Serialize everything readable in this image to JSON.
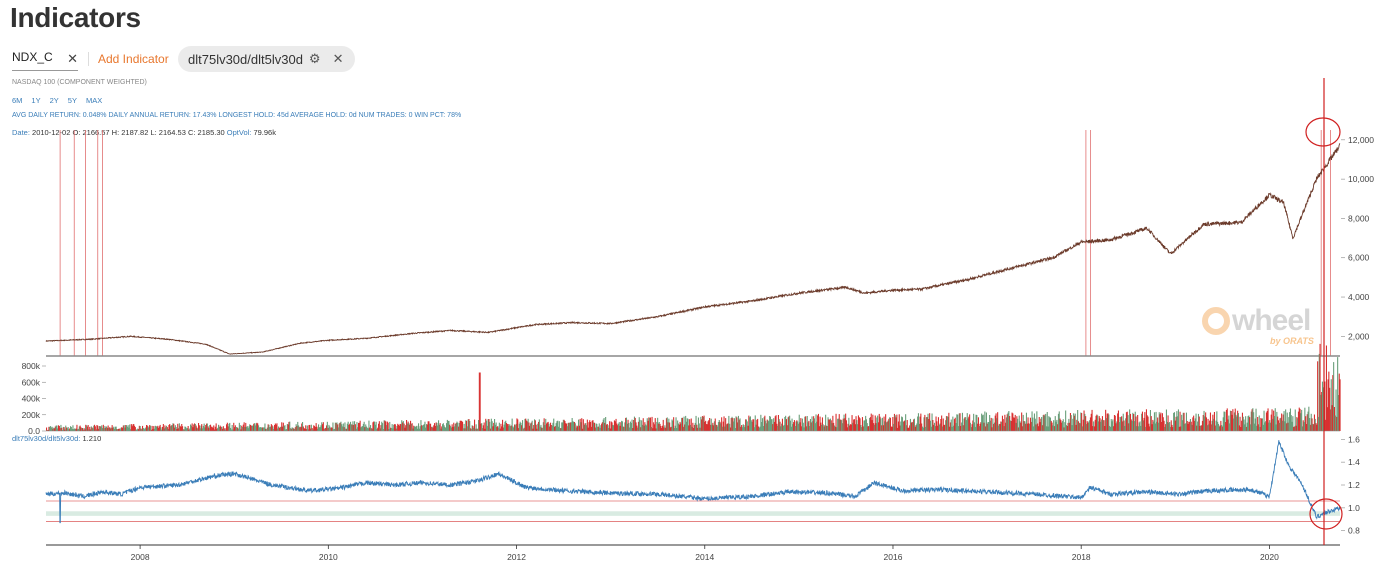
{
  "page": {
    "title": "Indicators"
  },
  "toolbar": {
    "ticker_value": "NDX_C",
    "add_indicator_label": "Add Indicator",
    "chip_label": "dlt75lv30d/dlt5lv30d"
  },
  "info": {
    "subtitle": "NASDAQ 100 (COMPONENT WEIGHTED)",
    "ranges": [
      "6M",
      "1Y",
      "2Y",
      "5Y",
      "MAX"
    ],
    "stats": "AVG DAILY RETURN: 0.048%   DAILY ANNUAL RETURN: 17.43%   LONGEST HOLD: 45d   AVERAGE HOLD: 0d   NUM TRADES: 0   WIN PCT: 78%",
    "ohlc_label": "Date:",
    "ohlc_text": " 2010-12-02  O: 2166.57  H: 2187.82  L: 2164.53  C: 2185.30  ",
    "optvol_label": "OptVol:",
    "optvol_value": " 79.96k"
  },
  "watermark": {
    "text": "wheel",
    "by": "by ORATS"
  },
  "indicator": {
    "name": "dlt75lv30d/dlt5lv30d:",
    "value": " 1.210"
  },
  "colors": {
    "accent": "#e8772e",
    "link": "#3a7db8",
    "price": "#6b3a2a",
    "line": "#3a7db8",
    "signal": "#e07070",
    "vol_up": "#6a9e7a",
    "vol_down": "#d83030",
    "band": "#d9ebe2"
  },
  "chart_data": [
    {
      "type": "line",
      "name": "price",
      "x_ticks": [
        "2008",
        "2010",
        "2012",
        "2014",
        "2016",
        "2018",
        "2020"
      ],
      "y_ticks": [
        "2,000",
        "4,000",
        "6,000",
        "8,000",
        "10,000",
        "12,000"
      ],
      "ylim": [
        1000,
        12500
      ],
      "x": [
        2007.0,
        2007.5,
        2007.9,
        2008.3,
        2008.7,
        2008.95,
        2009.3,
        2009.7,
        2010.0,
        2010.4,
        2010.9,
        2011.3,
        2011.7,
        2012.2,
        2012.6,
        2013.0,
        2013.5,
        2014.0,
        2014.5,
        2015.0,
        2015.5,
        2015.7,
        2016.0,
        2016.3,
        2016.8,
        2017.2,
        2017.7,
        2018.0,
        2018.3,
        2018.7,
        2018.95,
        2019.3,
        2019.7,
        2020.0,
        2020.15,
        2020.25,
        2020.5,
        2020.75
      ],
      "values": [
        1760,
        1860,
        2000,
        1850,
        1600,
        1100,
        1200,
        1650,
        1800,
        1900,
        2150,
        2300,
        2200,
        2600,
        2700,
        2650,
        3000,
        3500,
        3800,
        4200,
        4500,
        4200,
        4350,
        4400,
        4900,
        5400,
        6000,
        6800,
        6900,
        7500,
        6200,
        7700,
        7800,
        9200,
        8800,
        7000,
        10000,
        11700
      ],
      "signals": [
        2007.15,
        2007.3,
        2007.42,
        2007.55,
        2007.6,
        2018.05,
        2018.1,
        2020.55,
        2020.65
      ]
    },
    {
      "type": "bar",
      "name": "optvol",
      "y_ticks": [
        "0.0",
        "200k",
        "400k",
        "600k",
        "800k"
      ],
      "ylim": [
        0,
        800000
      ],
      "x_range": [
        2007.0,
        2020.75
      ]
    },
    {
      "type": "line",
      "name": "dlt75lv30d/dlt5lv30d",
      "y_ticks": [
        "0.8",
        "1.0",
        "1.2",
        "1.4",
        "1.6"
      ],
      "ylim": [
        0.78,
        1.62
      ],
      "x": [
        2007.0,
        2007.2,
        2007.4,
        2007.6,
        2007.8,
        2008.0,
        2008.4,
        2008.8,
        2009.0,
        2009.4,
        2009.8,
        2010.1,
        2010.4,
        2010.7,
        2011.0,
        2011.3,
        2011.6,
        2011.8,
        2012.1,
        2012.5,
        2013.0,
        2013.5,
        2014.0,
        2014.5,
        2014.9,
        2015.3,
        2015.6,
        2015.8,
        2016.1,
        2016.5,
        2017.0,
        2017.5,
        2018.0,
        2018.1,
        2018.3,
        2018.7,
        2019.0,
        2019.4,
        2019.8,
        2020.0,
        2020.1,
        2020.2,
        2020.35,
        2020.5,
        2020.6,
        2020.75
      ],
      "values": [
        1.12,
        1.13,
        1.1,
        1.14,
        1.12,
        1.18,
        1.2,
        1.28,
        1.3,
        1.2,
        1.15,
        1.17,
        1.22,
        1.2,
        1.22,
        1.2,
        1.24,
        1.3,
        1.18,
        1.15,
        1.13,
        1.12,
        1.08,
        1.1,
        1.14,
        1.13,
        1.1,
        1.22,
        1.15,
        1.16,
        1.14,
        1.12,
        1.09,
        1.18,
        1.12,
        1.14,
        1.12,
        1.15,
        1.16,
        1.1,
        1.58,
        1.38,
        1.2,
        0.92,
        0.96,
        1.0
      ],
      "bands": [
        0.88,
        0.97,
        1.06
      ]
    }
  ]
}
